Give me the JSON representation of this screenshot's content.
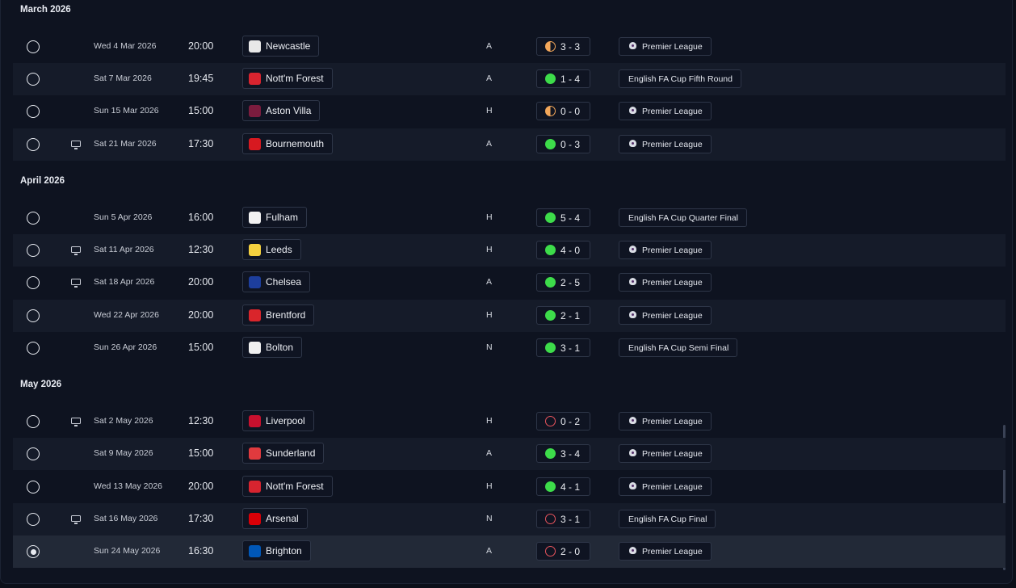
{
  "sections": [
    {
      "month": "March 2026",
      "fixtures": [
        {
          "date": "Wed 4 Mar 2026",
          "time": "20:00",
          "team": "Newcastle",
          "crest": "newcastle-crest",
          "tv": false,
          "venue": "A",
          "result": "draw",
          "score": "3 - 3",
          "competition": "Premier League",
          "comp_icon": true
        },
        {
          "date": "Sat 7 Mar 2026",
          "time": "19:45",
          "team": "Nott'm Forest",
          "crest": "nottm-forest-crest",
          "tv": false,
          "venue": "A",
          "result": "win",
          "score": "1 - 4",
          "competition": "English FA Cup Fifth Round",
          "comp_icon": false
        },
        {
          "date": "Sun 15 Mar 2026",
          "time": "15:00",
          "team": "Aston Villa",
          "crest": "aston-villa-crest",
          "tv": false,
          "venue": "H",
          "result": "draw",
          "score": "0 - 0",
          "competition": "Premier League",
          "comp_icon": true
        },
        {
          "date": "Sat 21 Mar 2026",
          "time": "17:30",
          "team": "Bournemouth",
          "crest": "bournemouth-crest",
          "tv": true,
          "venue": "A",
          "result": "win",
          "score": "0 - 3",
          "competition": "Premier League",
          "comp_icon": true
        }
      ]
    },
    {
      "month": "April 2026",
      "fixtures": [
        {
          "date": "Sun 5 Apr 2026",
          "time": "16:00",
          "team": "Fulham",
          "crest": "fulham-crest",
          "tv": false,
          "venue": "H",
          "result": "win",
          "score": "5 - 4",
          "competition": "English FA Cup Quarter Final",
          "comp_icon": false
        },
        {
          "date": "Sat 11 Apr 2026",
          "time": "12:30",
          "team": "Leeds",
          "crest": "leeds-crest",
          "tv": true,
          "venue": "H",
          "result": "win",
          "score": "4 - 0",
          "competition": "Premier League",
          "comp_icon": true
        },
        {
          "date": "Sat 18 Apr 2026",
          "time": "20:00",
          "team": "Chelsea",
          "crest": "chelsea-crest",
          "tv": true,
          "venue": "A",
          "result": "win",
          "score": "2 - 5",
          "competition": "Premier League",
          "comp_icon": true
        },
        {
          "date": "Wed 22 Apr 2026",
          "time": "20:00",
          "team": "Brentford",
          "crest": "brentford-crest",
          "tv": false,
          "venue": "H",
          "result": "win",
          "score": "2 - 1",
          "competition": "Premier League",
          "comp_icon": true
        },
        {
          "date": "Sun 26 Apr 2026",
          "time": "15:00",
          "team": "Bolton",
          "crest": "bolton-crest",
          "tv": false,
          "venue": "N",
          "result": "win",
          "score": "3 - 1",
          "competition": "English FA Cup Semi Final",
          "comp_icon": false
        }
      ]
    },
    {
      "month": "May 2026",
      "fixtures": [
        {
          "date": "Sat 2 May 2026",
          "time": "12:30",
          "team": "Liverpool",
          "crest": "liverpool-crest",
          "tv": true,
          "venue": "H",
          "result": "loss",
          "score": "0 - 2",
          "competition": "Premier League",
          "comp_icon": true
        },
        {
          "date": "Sat 9 May 2026",
          "time": "15:00",
          "team": "Sunderland",
          "crest": "sunderland-crest",
          "tv": false,
          "venue": "A",
          "result": "win",
          "score": "3 - 4",
          "competition": "Premier League",
          "comp_icon": true
        },
        {
          "date": "Wed 13 May 2026",
          "time": "20:00",
          "team": "Nott'm Forest",
          "crest": "nottm-forest-crest",
          "tv": false,
          "venue": "H",
          "result": "win",
          "score": "4 - 1",
          "competition": "Premier League",
          "comp_icon": true
        },
        {
          "date": "Sat 16 May 2026",
          "time": "17:30",
          "team": "Arsenal",
          "crest": "arsenal-crest",
          "tv": true,
          "venue": "N",
          "result": "loss",
          "score": "3 - 1",
          "competition": "English FA Cup Final",
          "comp_icon": false
        },
        {
          "date": "Sun 24 May 2026",
          "time": "16:30",
          "team": "Brighton",
          "crest": "brighton-crest",
          "tv": false,
          "venue": "A",
          "result": "loss",
          "score": "2 - 0",
          "competition": "Premier League",
          "comp_icon": true,
          "selected": true
        }
      ]
    }
  ],
  "colors": {
    "win": "#3ddc4a",
    "draw": "#f3a75a",
    "loss": "#e8545d",
    "newcastle-crest": "#e8e8e8",
    "nottm-forest-crest": "#d8242f",
    "aston-villa-crest": "#7b1c3e",
    "bournemouth-crest": "#d71920",
    "fulham-crest": "#f2f2f2",
    "leeds-crest": "#f4d03f",
    "chelsea-crest": "#1d3e9c",
    "brentford-crest": "#d9252b",
    "bolton-crest": "#f0f0f0",
    "liverpool-crest": "#c8102e",
    "sunderland-crest": "#e03a3e",
    "arsenal-crest": "#db0007",
    "brighton-crest": "#0057b8"
  }
}
